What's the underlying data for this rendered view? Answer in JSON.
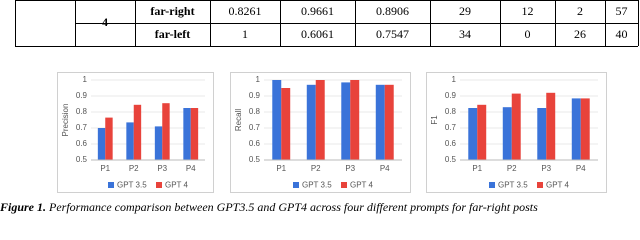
{
  "table": {
    "rows": [
      [
        "4",
        "far-right",
        0.8261,
        0.9661,
        0.8906,
        29,
        12,
        2,
        57
      ],
      [
        "far-left",
        1,
        0.6061,
        0.7547,
        34,
        0,
        26,
        40
      ]
    ]
  },
  "chart_data": [
    {
      "type": "bar",
      "y_label": "Precision",
      "categories": [
        "P1",
        "P2",
        "P3",
        "P4"
      ],
      "series": [
        {
          "name": "GPT 3.5",
          "color": "#3a73d9",
          "values": [
            0.7,
            0.735,
            0.71,
            0.825
          ]
        },
        {
          "name": "GPT 4",
          "color": "#e8433b",
          "values": [
            0.765,
            0.845,
            0.855,
            0.825
          ]
        }
      ],
      "ylim": [
        0.5,
        1
      ],
      "yticks": [
        0.5,
        0.6,
        0.7,
        0.8,
        0.9,
        1
      ],
      "grid": true,
      "legend": "bottom"
    },
    {
      "type": "bar",
      "y_label": "Recall",
      "categories": [
        "P1",
        "P2",
        "P3",
        "P4"
      ],
      "series": [
        {
          "name": "GPT 3.5",
          "color": "#3a73d9",
          "values": [
            1.0,
            0.97,
            0.985,
            0.97
          ]
        },
        {
          "name": "GPT 4",
          "color": "#e8433b",
          "values": [
            0.95,
            1.0,
            1.0,
            0.97
          ]
        }
      ],
      "ylim": [
        0.5,
        1
      ],
      "yticks": [
        0.5,
        0.6,
        0.7,
        0.8,
        0.9,
        1
      ],
      "grid": true,
      "legend": "bottom"
    },
    {
      "type": "bar",
      "y_label": "F1",
      "categories": [
        "P1",
        "P2",
        "P3",
        "P4"
      ],
      "series": [
        {
          "name": "GPT 3.5",
          "color": "#3a73d9",
          "values": [
            0.825,
            0.83,
            0.825,
            0.885
          ]
        },
        {
          "name": "GPT 4",
          "color": "#e8433b",
          "values": [
            0.845,
            0.915,
            0.92,
            0.885
          ]
        }
      ],
      "ylim": [
        0.5,
        1
      ],
      "yticks": [
        0.5,
        0.6,
        0.7,
        0.8,
        0.9,
        1
      ],
      "grid": true,
      "legend": "bottom"
    }
  ],
  "caption": {
    "label": "Figure 1.",
    "text": "Performance comparison between GPT3.5 and GPT4 across four different prompts for far-right posts"
  }
}
